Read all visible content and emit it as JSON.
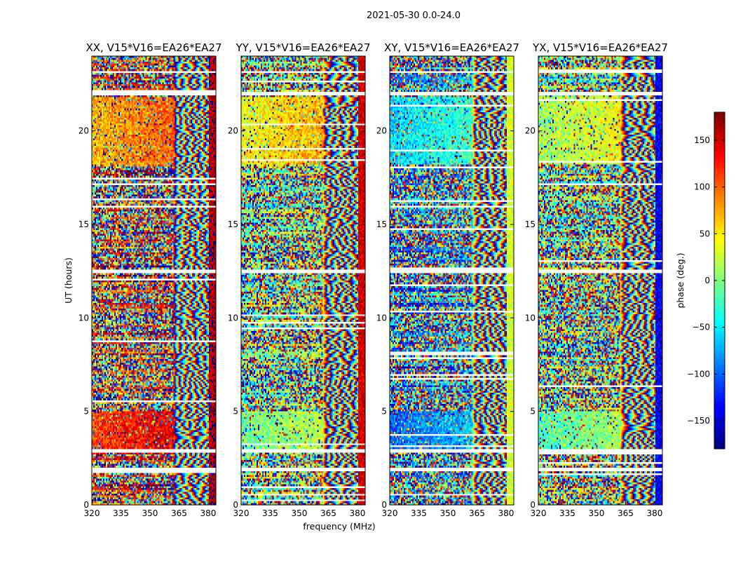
{
  "figure": {
    "suptitle": "2021-05-30 0.0-24.0",
    "xlabel": "frequency (MHz)",
    "ylabel": "UT (hours)"
  },
  "chart_data": {
    "type": "heatmap",
    "title": "2021-05-30 0.0-24.0",
    "xlabel": "frequency (MHz)",
    "ylabel": "UT (hours)",
    "xlim": [
      320,
      384
    ],
    "ylim": [
      0,
      24
    ],
    "xticks": [
      320,
      335,
      350,
      365,
      380
    ],
    "yticks": [
      0,
      5,
      10,
      15,
      20
    ],
    "colormap": "jet",
    "colorbar": {
      "label": "phase (deg.)",
      "range": [
        -180,
        180
      ],
      "ticks": [
        -150,
        -100,
        -50,
        0,
        50,
        100,
        150
      ],
      "tick_labels": [
        "−150",
        "−100",
        "−50",
        "0",
        "50",
        "100",
        "150"
      ]
    },
    "panels": [
      {
        "title": "XX, V15*V16=EA26*EA27",
        "band_phase_deg": 110,
        "edge_phase_deg": 165,
        "alt_phase_deg": 70
      },
      {
        "title": "YY, V15*V16=EA26*EA27",
        "band_phase_deg": -10,
        "edge_phase_deg": 150,
        "alt_phase_deg": 40
      },
      {
        "title": "XY, V15*V16=EA26*EA27",
        "band_phase_deg": -100,
        "edge_phase_deg": 30,
        "alt_phase_deg": -60
      },
      {
        "title": "YX, V15*V16=EA26*EA27",
        "band_phase_deg": -20,
        "edge_phase_deg": -140,
        "alt_phase_deg": 10
      }
    ],
    "flagged_ut_ranges_hours": [
      [
        2.85,
        3.0
      ],
      [
        1.85,
        1.95
      ],
      [
        1.45,
        1.55
      ],
      [
        12.4,
        12.55
      ],
      [
        21.9,
        22.1
      ],
      [
        23.1,
        23.2
      ]
    ]
  }
}
